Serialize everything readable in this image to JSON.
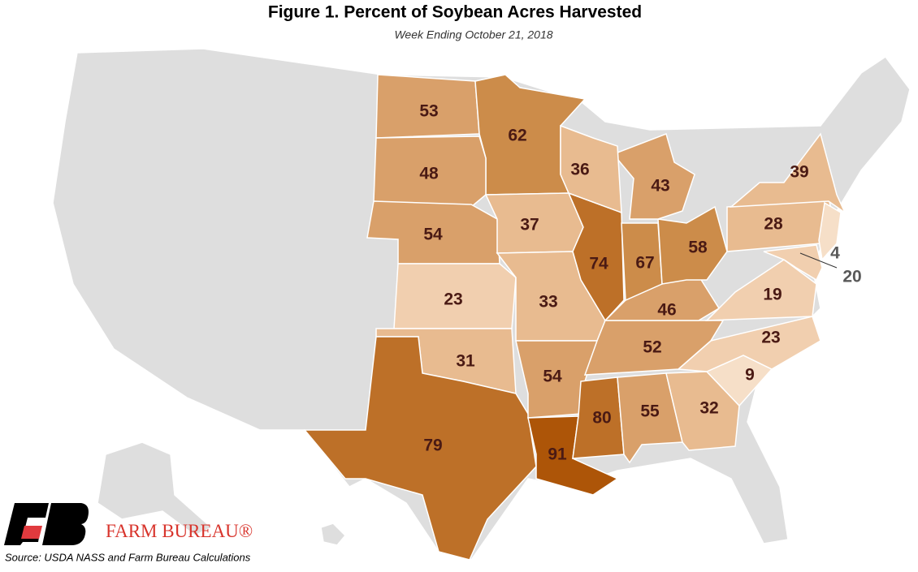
{
  "title": "Figure 1. Percent of Soybean Acres Harvested",
  "subtitle": "Week Ending October 21, 2018",
  "source": "Source: USDA NASS and Farm Bureau Calculations",
  "logo_text": "FARM BUREAU®",
  "regions": [
    {
      "value": 53,
      "color": "#d9a06a"
    },
    {
      "value": 62,
      "color": "#cc8c4a"
    },
    {
      "value": 48,
      "color": "#d9a06a"
    },
    {
      "value": 54,
      "color": "#d9a06a"
    },
    {
      "value": 23,
      "color": "#f1cfaf"
    },
    {
      "value": 31,
      "color": "#e8bb90"
    },
    {
      "value": 79,
      "color": "#bd7028"
    },
    {
      "value": 37,
      "color": "#e8bb90"
    },
    {
      "value": 33,
      "color": "#e8bb90"
    },
    {
      "value": 54,
      "color": "#d9a06a"
    },
    {
      "value": 91,
      "color": "#ad5508"
    },
    {
      "value": 80,
      "color": "#bd7028"
    },
    {
      "value": 55,
      "color": "#d9a06a"
    },
    {
      "value": 32,
      "color": "#e8bb90"
    },
    {
      "value": 9,
      "color": "#f6dfc8"
    },
    {
      "value": 23,
      "color": "#f1cfaf"
    },
    {
      "value": 52,
      "color": "#d9a06a"
    },
    {
      "value": 46,
      "color": "#d9a06a"
    },
    {
      "value": 19,
      "color": "#f1cfaf"
    },
    {
      "value": 74,
      "color": "#bd7028"
    },
    {
      "value": 67,
      "color": "#cc8c4a"
    },
    {
      "value": 58,
      "color": "#cc8c4a"
    },
    {
      "value": 43,
      "color": "#d9a06a"
    },
    {
      "value": 36,
      "color": "#e8bb90"
    },
    {
      "value": 28,
      "color": "#e8bb90"
    },
    {
      "value": 39,
      "color": "#e8bb90"
    },
    {
      "value": 4,
      "color": "#f6dfc8"
    },
    {
      "value": 20,
      "color": "#f1cfaf"
    }
  ]
}
